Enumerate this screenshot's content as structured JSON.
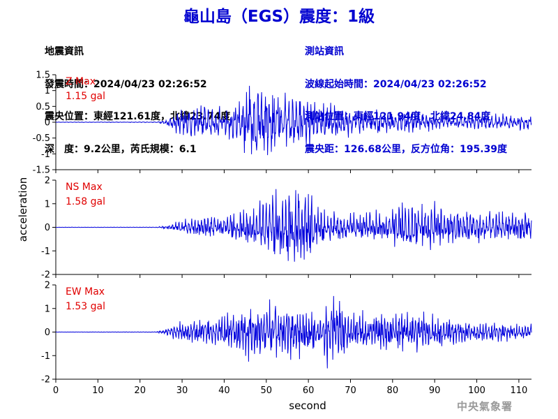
{
  "title": "龜山島（EGS）震度：1級",
  "event_info": {
    "heading": "地震資訊",
    "time": "發震時間：2024/04/23 02:26:52",
    "location": "震央位置：東經121.61度，北緯23.74度",
    "depth_mag": "深　度：9.2公里，芮氏規模：6.1"
  },
  "station_info": {
    "heading": "測站資訊",
    "start": "波線起始時間：2024/04/23 02:26:52",
    "location": "測站位置：東經121.94度，北緯24.84度",
    "distance": "震央距：126.68公里，反方位角：195.39度"
  },
  "agency": "中央氣象署",
  "colors": {
    "trace": "#0000dd",
    "label": "#e00000",
    "text": "#000000",
    "accent": "#0000d0"
  },
  "chart_data": [
    {
      "type": "line",
      "component": "Z",
      "label_name": "Z Max",
      "label_value": "1.15 gal",
      "ylim": [
        -1.5,
        1.5
      ],
      "yticks": [
        -1.5,
        -1,
        -0.5,
        0,
        0.5,
        1,
        1.5
      ],
      "ytick_labels": [
        "-1.5",
        "-1",
        "-0.5",
        "0",
        "0.5",
        "1",
        "1.5"
      ],
      "peak": 1.15,
      "envelope": [
        [
          0,
          0.005
        ],
        [
          24,
          0.01
        ],
        [
          26,
          0.08
        ],
        [
          28,
          0.25
        ],
        [
          32,
          0.4
        ],
        [
          36,
          0.45
        ],
        [
          40,
          0.4
        ],
        [
          44,
          0.6
        ],
        [
          46,
          1.15
        ],
        [
          48,
          0.95
        ],
        [
          50,
          1.0
        ],
        [
          54,
          0.75
        ],
        [
          58,
          0.7
        ],
        [
          62,
          0.6
        ],
        [
          66,
          0.45
        ],
        [
          70,
          0.35
        ],
        [
          80,
          0.3
        ],
        [
          90,
          0.22
        ],
        [
          100,
          0.2
        ],
        [
          113,
          0.2
        ]
      ]
    },
    {
      "type": "line",
      "component": "NS",
      "label_name": "NS Max",
      "label_value": "1.58 gal",
      "ylim": [
        -2,
        2
      ],
      "yticks": [
        -2,
        -1,
        0,
        1,
        2
      ],
      "ytick_labels": [
        "-2",
        "-1",
        "0",
        "1",
        "2"
      ],
      "peak": 1.58,
      "envelope": [
        [
          0,
          0.005
        ],
        [
          24,
          0.01
        ],
        [
          26,
          0.06
        ],
        [
          30,
          0.25
        ],
        [
          35,
          0.35
        ],
        [
          40,
          0.4
        ],
        [
          45,
          0.6
        ],
        [
          50,
          1.0
        ],
        [
          54,
          1.35
        ],
        [
          57,
          1.58
        ],
        [
          60,
          1.2
        ],
        [
          64,
          0.6
        ],
        [
          70,
          0.45
        ],
        [
          80,
          0.7
        ],
        [
          83,
          1.0
        ],
        [
          90,
          0.8
        ],
        [
          100,
          0.6
        ],
        [
          113,
          0.55
        ]
      ]
    },
    {
      "type": "line",
      "component": "EW",
      "label_name": "EW Max",
      "label_value": "1.53 gal",
      "ylim": [
        -2,
        2
      ],
      "yticks": [
        -2,
        -1,
        0,
        1,
        2
      ],
      "ytick_labels": [
        "-2",
        "-1",
        "0",
        "1",
        "2"
      ],
      "peak": 1.53,
      "envelope": [
        [
          0,
          0.005
        ],
        [
          24,
          0.01
        ],
        [
          26,
          0.12
        ],
        [
          30,
          0.4
        ],
        [
          35,
          0.45
        ],
        [
          40,
          0.55
        ],
        [
          45,
          0.9
        ],
        [
          50,
          1.0
        ],
        [
          54,
          1.1
        ],
        [
          58,
          0.9
        ],
        [
          62,
          0.7
        ],
        [
          66,
          1.53
        ],
        [
          70,
          0.65
        ],
        [
          80,
          0.7
        ],
        [
          86,
          0.8
        ],
        [
          90,
          0.6
        ],
        [
          100,
          0.4
        ],
        [
          113,
          0.3
        ]
      ]
    }
  ],
  "x_axis": {
    "label": "second",
    "xlim": [
      0,
      113
    ],
    "ticks": [
      0,
      10,
      20,
      30,
      40,
      50,
      60,
      70,
      80,
      90,
      100,
      110
    ],
    "tick_labels": [
      "0",
      "10",
      "20",
      "30",
      "40",
      "50",
      "60",
      "70",
      "80",
      "90",
      "100",
      "110"
    ]
  },
  "y_axis": {
    "label": "acceleration"
  }
}
